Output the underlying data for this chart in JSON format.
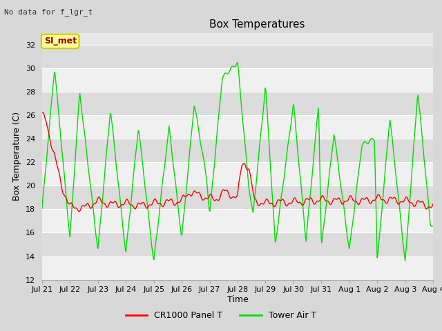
{
  "title": "Box Temperatures",
  "ylabel": "Box Temperature (C)",
  "xlabel": "Time",
  "no_data_text": "No data for f_lgr_t",
  "station_label": "SI_met",
  "ylim": [
    12,
    33
  ],
  "yticks": [
    12,
    14,
    16,
    18,
    20,
    22,
    24,
    26,
    28,
    30,
    32
  ],
  "x_labels": [
    "Jul 21",
    "Jul 22",
    "Jul 23",
    "Jul 24",
    "Jul 25",
    "Jul 26",
    "Jul 27",
    "Jul 28",
    "Jul 29",
    "Jul 30",
    "Jul 31",
    "Aug 1",
    "Aug 2",
    "Aug 3",
    "Aug 4"
  ],
  "background_color": "#d8d8d8",
  "plot_bg_color": "#e8e8e8",
  "band_color_light": "#f0f0f0",
  "band_color_dark": "#dcdcdc",
  "grid_color": "#ffffff",
  "panel_color": "#ff0000",
  "air_color": "#00dd00",
  "station_box_facecolor": "#ffff99",
  "station_box_edgecolor": "#cccc00",
  "station_text_color": "#990000",
  "title_fontsize": 11,
  "axis_fontsize": 9,
  "tick_fontsize": 8,
  "tower_key_t": [
    0,
    0.45,
    1.0,
    1.35,
    2.0,
    2.45,
    3.0,
    3.45,
    4.0,
    4.35,
    4.55,
    5.0,
    5.45,
    5.9,
    6.0,
    6.45,
    7.0,
    7.4,
    7.55,
    8.0,
    8.35,
    9.0,
    9.45,
    9.9,
    10.0,
    10.45,
    11.0,
    11.45,
    11.9,
    12.0,
    12.45,
    13.0,
    13.45,
    13.9,
    14.0
  ],
  "tower_key_v": [
    18.0,
    30.0,
    15.5,
    28.0,
    14.5,
    26.5,
    14.2,
    25.0,
    13.5,
    21.0,
    25.0,
    15.5,
    27.0,
    20.5,
    17.5,
    29.2,
    30.5,
    20.0,
    17.5,
    28.5,
    15.0,
    27.0,
    15.3,
    27.0,
    14.7,
    24.5,
    14.5,
    23.5,
    24.0,
    13.5,
    25.8,
    13.5,
    28.0,
    16.8,
    16.5
  ],
  "panel_key_t": [
    0.0,
    0.15,
    0.3,
    0.5,
    0.7,
    1.0,
    1.5,
    2.0,
    2.5,
    3.0,
    3.5,
    4.0,
    4.5,
    5.0,
    5.3,
    5.6,
    5.9,
    6.2,
    6.5,
    6.8,
    7.0,
    7.15,
    7.25,
    7.4,
    7.6,
    8.0,
    8.5,
    9.0,
    9.5,
    10.0,
    10.5,
    11.0,
    11.5,
    12.0,
    12.5,
    13.0,
    13.5,
    14.0
  ],
  "panel_key_v": [
    26.0,
    25.5,
    24.0,
    22.0,
    20.0,
    18.2,
    18.1,
    18.7,
    18.4,
    18.5,
    18.3,
    18.5,
    18.6,
    18.7,
    19.5,
    19.2,
    19.0,
    18.8,
    19.5,
    19.2,
    19.0,
    21.8,
    22.0,
    21.5,
    18.7,
    18.5,
    18.6,
    18.6,
    18.7,
    18.8,
    18.7,
    18.8,
    18.7,
    18.9,
    18.8,
    18.7,
    18.5,
    18.2
  ]
}
